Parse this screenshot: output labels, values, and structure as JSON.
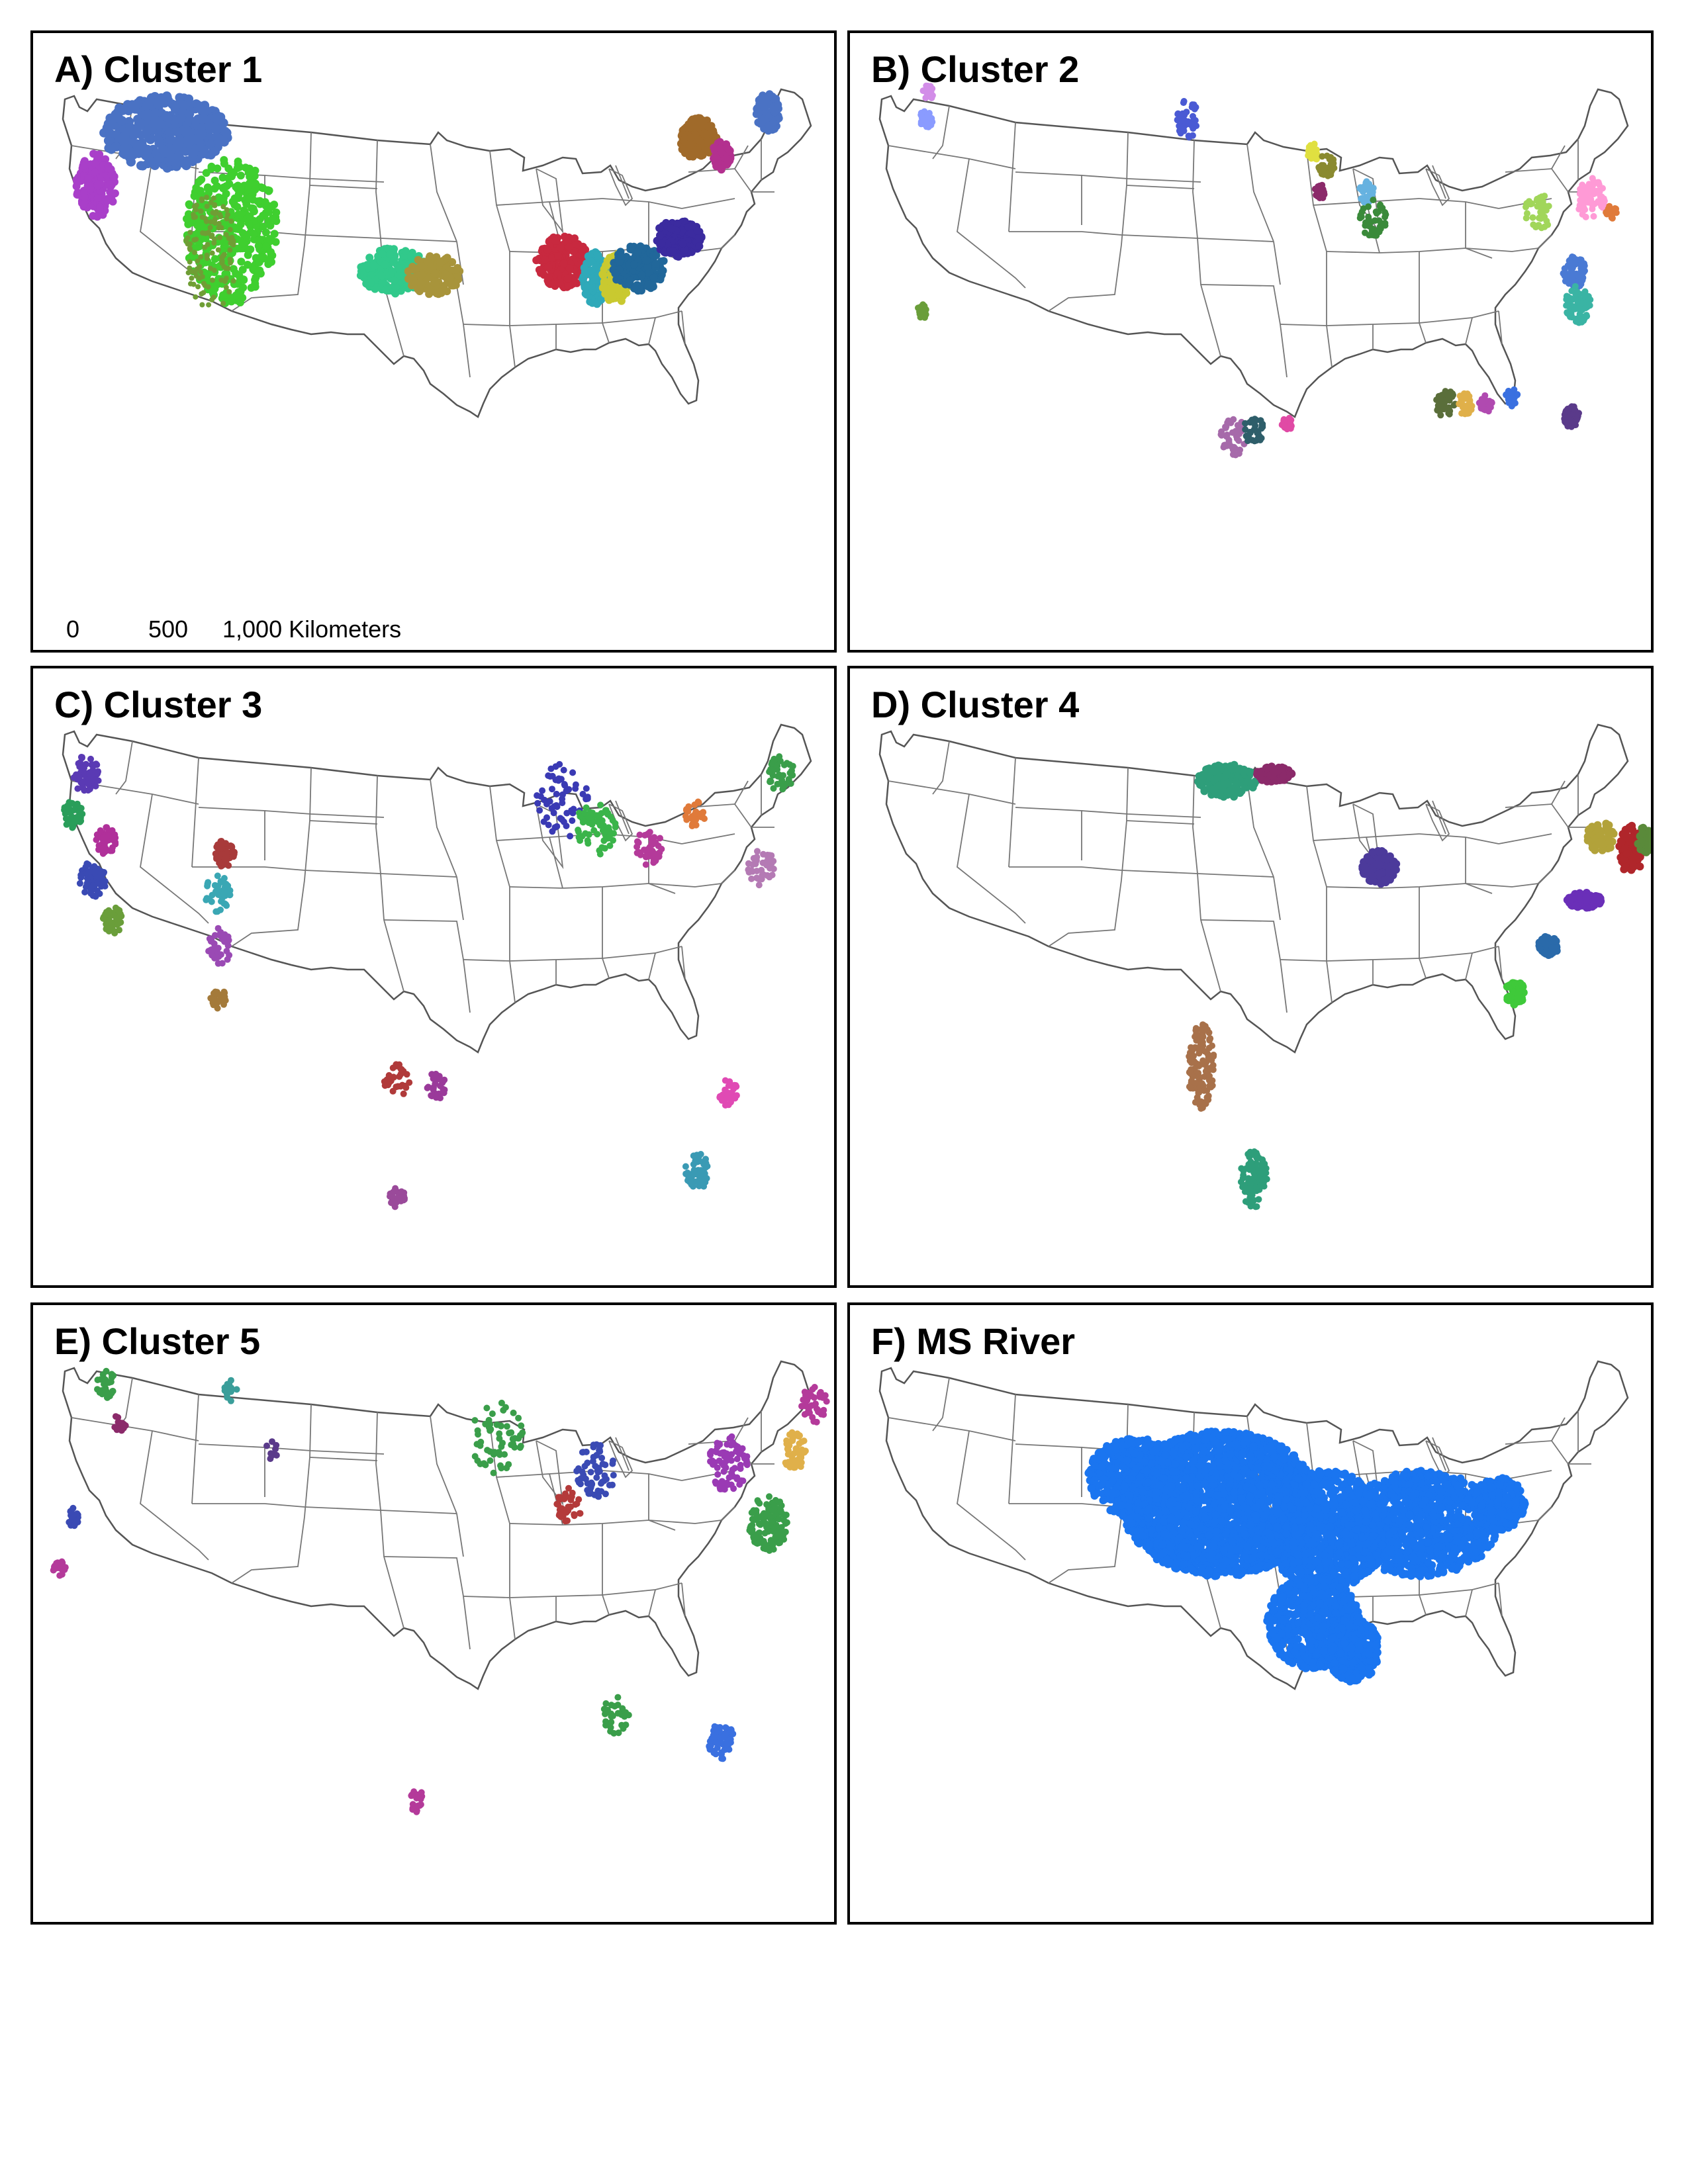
{
  "panels": [
    {
      "title": "A) Cluster 1",
      "clusters": [
        {
          "color": "#4a72c4",
          "region": "pacific-northwest"
        },
        {
          "color": "#a93fc9",
          "region": "california-central-valley"
        },
        {
          "color": "#3fcf2f",
          "region": "colorado-basin"
        },
        {
          "color": "#6f9e35",
          "region": "texas-brazos"
        },
        {
          "color": "#31c98b",
          "region": "texas-colorado"
        },
        {
          "color": "#a8943b",
          "region": "mobile-basin"
        },
        {
          "color": "#c8293f",
          "region": "apalachicola"
        },
        {
          "color": "#2fa9b9",
          "region": "altamaha"
        },
        {
          "color": "#c9c930",
          "region": "savannah"
        },
        {
          "color": "#21679a",
          "region": "carolinas"
        },
        {
          "color": "#3b2b9f",
          "region": "susquehanna"
        },
        {
          "color": "#a06a2a",
          "region": "delaware"
        },
        {
          "color": "#b3308f",
          "region": "maine"
        }
      ]
    },
    {
      "title": "B) Cluster 2",
      "clusters": []
    },
    {
      "title": "C) Cluster 3",
      "clusters": []
    },
    {
      "title": "D) Cluster 4",
      "clusters": [
        {
          "color": "#2e9e7a",
          "region": "red-river-north"
        },
        {
          "color": "#8b2a6a",
          "region": "lake-superior-mn"
        },
        {
          "color": "#4c3a9b",
          "region": "michigan-lp"
        },
        {
          "color": "#b2a23a",
          "region": "vermont"
        },
        {
          "color": "#b0262b",
          "region": "new-hampshire"
        },
        {
          "color": "#5a8a3a",
          "region": "maine-sw"
        },
        {
          "color": "#6a2fb8",
          "region": "virginia"
        },
        {
          "color": "#2a6aaa",
          "region": "south-carolina"
        },
        {
          "color": "#3fc93a",
          "region": "georgia"
        },
        {
          "color": "#a8714a",
          "region": "pecos-rio-grande"
        }
      ]
    },
    {
      "title": "E) Cluster 5",
      "clusters": []
    },
    {
      "title": "F) MS River",
      "clusters": [
        {
          "color": "#1a75f0",
          "region": "mississippi-basin"
        }
      ]
    }
  ],
  "scale_bar": {
    "labels": [
      "0",
      "500",
      "1,000 Kilometers"
    ]
  },
  "basemap": {
    "state_line_color": "#777777",
    "coast_color": "#555555"
  }
}
